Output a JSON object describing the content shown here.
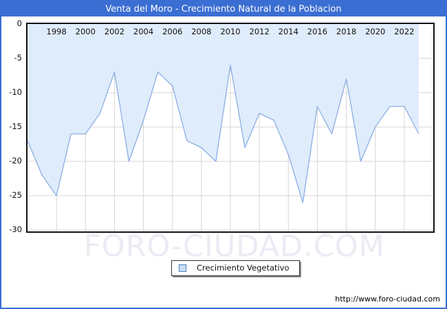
{
  "page": {
    "border_color": "#3a6ed2",
    "background": "#ffffff"
  },
  "header": {
    "title": "Venta del Moro - Crecimiento Natural de la Poblacion",
    "bg_color": "#3a6ed2",
    "text_color": "#ffffff"
  },
  "chart_data": {
    "type": "area",
    "title": "Venta del Moro - Crecimiento Natural de la Poblacion",
    "series": [
      {
        "name": "Crecimiento Vegetativo",
        "x": [
          1996,
          1997,
          1998,
          1999,
          2000,
          2001,
          2002,
          2003,
          2004,
          2005,
          2006,
          2007,
          2008,
          2009,
          2010,
          2011,
          2012,
          2013,
          2014,
          2015,
          2016,
          2017,
          2018,
          2019,
          2020,
          2021,
          2022,
          2023
        ],
        "values": [
          -17,
          -22,
          -25,
          -16,
          -16,
          -13,
          -7,
          -20,
          -14,
          -7,
          -9,
          -17,
          -18,
          -20,
          -6,
          -18,
          -13,
          -14,
          -19,
          -26,
          -12,
          -16,
          -8,
          -20,
          -15,
          -12,
          -12,
          -16
        ]
      }
    ],
    "xlim": [
      1996,
      2024
    ],
    "ylim": [
      -30,
      0
    ],
    "xticks": [
      1998,
      2000,
      2002,
      2004,
      2006,
      2008,
      2010,
      2012,
      2014,
      2016,
      2018,
      2020,
      2022
    ],
    "yticks": [
      0,
      -5,
      -10,
      -15,
      -20,
      -25,
      -30
    ],
    "grid": true,
    "legend_position": "bottom-center",
    "colors": {
      "area_fill": "#dfecfb",
      "line": "#8caee4",
      "grid": "#d6d6d6",
      "axis": "#111111",
      "tick_text": "#111111"
    }
  },
  "legend": {
    "label": "Crecimiento Vegetativo",
    "swatch_fill": "#c9def5",
    "swatch_border": "#4a7fc0"
  },
  "watermark": {
    "text": "FORO-CIUDAD.COM",
    "color": "#ebebf3"
  },
  "footer": {
    "url": "http://www.foro-ciudad.com"
  }
}
